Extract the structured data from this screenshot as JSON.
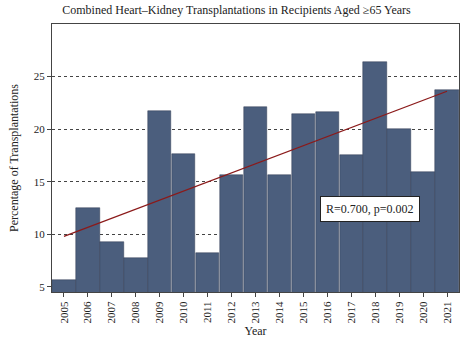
{
  "chart_data": {
    "type": "bar",
    "title": "Combined Heart–Kidney Transplantations in Recipients Aged ≥65 Years",
    "x_label": "Year",
    "y_label": "Percentage of Transplantations",
    "categories": [
      "2005",
      "2006",
      "2007",
      "2008",
      "2009",
      "2010",
      "2011",
      "2012",
      "2013",
      "2014",
      "2015",
      "2016",
      "2017",
      "2018",
      "2019",
      "2020",
      "2021"
    ],
    "values": [
      5.6,
      12.5,
      9.3,
      7.7,
      21.7,
      17.6,
      8.2,
      15.6,
      22.1,
      15.6,
      21.4,
      21.6,
      17.5,
      26.4,
      20.0,
      15.9,
      23.7
    ],
    "color": "#4b5e7d",
    "trend_line": {
      "categories": [
        "2005",
        "2021"
      ],
      "values": [
        9.8,
        23.6
      ],
      "color": "#8b1a1a"
    },
    "annotation": "R=0.700, p=0.002",
    "ylim": [
      4.5,
      30
    ],
    "yticks": [
      5,
      10,
      15,
      20,
      25
    ],
    "grid": true
  }
}
